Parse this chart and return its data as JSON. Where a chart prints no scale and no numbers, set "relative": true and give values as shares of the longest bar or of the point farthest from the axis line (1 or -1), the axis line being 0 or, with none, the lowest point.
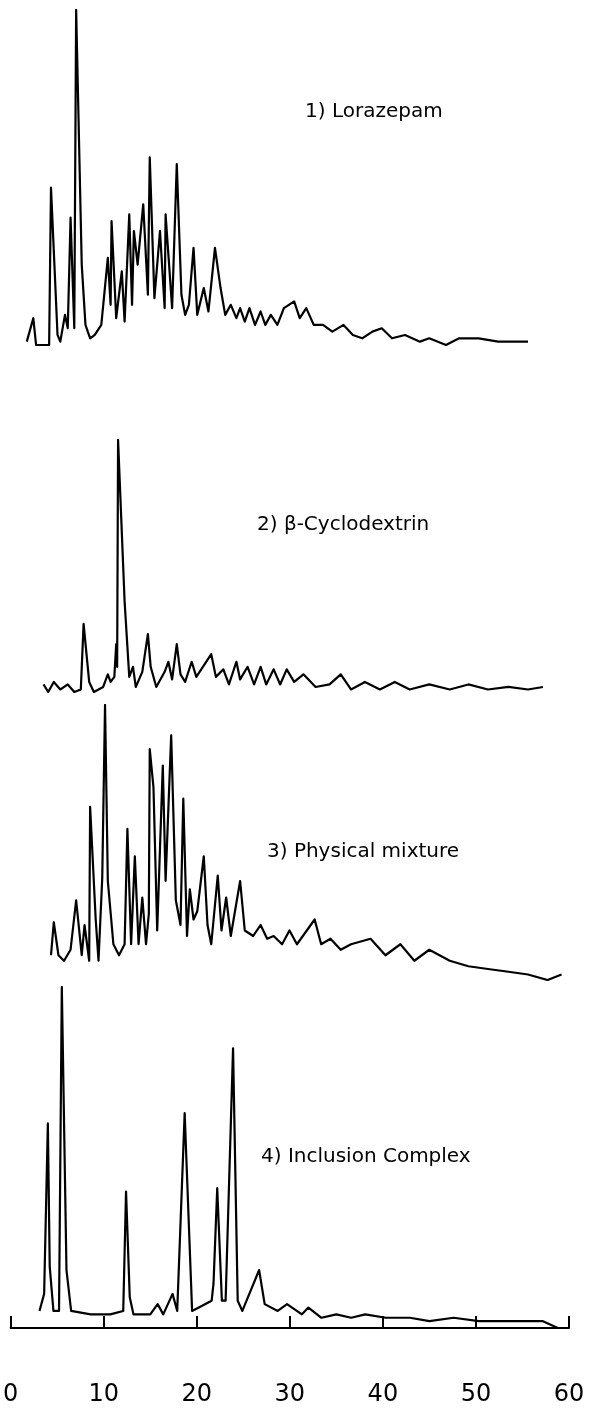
{
  "chart_data": [
    {
      "type": "line",
      "title": "1) Lorazepam",
      "relative": true,
      "xlim": [
        0,
        60
      ],
      "tick_labels": false,
      "marker": "none",
      "series": [
        {
          "color": "#000000",
          "x": [
            1.8,
            2.5,
            2.8,
            4.2,
            4.4,
            5.1,
            5.4,
            5.9,
            6.2,
            6.5,
            6.9,
            7.1,
            7.7,
            8.1,
            8.6,
            9.1,
            9.8,
            10.5,
            10.8,
            10.9,
            11.4,
            12.0,
            12.3,
            12.8,
            13.1,
            13.3,
            13.7,
            14.3,
            14.8,
            15.0,
            15.5,
            16.1,
            16.6,
            16.7,
            17.4,
            17.9,
            18.4,
            18.8,
            19.2,
            19.7,
            20.1,
            20.8,
            21.3,
            22.0,
            22.6,
            23.1,
            23.7,
            24.3,
            24.7,
            25.2,
            25.7,
            26.3,
            26.9,
            27.4,
            28.0,
            28.7,
            29.4,
            30.5,
            31.1,
            31.8,
            32.6,
            33.6,
            34.6,
            35.8,
            36.8,
            37.8,
            38.9,
            39.9,
            41.0,
            42.4,
            44.0,
            45.0,
            46.8,
            48.2,
            50.3,
            52.4,
            54.0,
            55.6
          ],
          "values": [
            0.01,
            0.08,
            0.0,
            0.0,
            0.47,
            0.03,
            0.01,
            0.09,
            0.05,
            0.38,
            0.05,
            1.0,
            0.24,
            0.06,
            0.02,
            0.03,
            0.06,
            0.26,
            0.12,
            0.37,
            0.08,
            0.22,
            0.07,
            0.39,
            0.12,
            0.34,
            0.24,
            0.42,
            0.15,
            0.56,
            0.14,
            0.34,
            0.11,
            0.39,
            0.11,
            0.54,
            0.15,
            0.09,
            0.12,
            0.29,
            0.09,
            0.17,
            0.1,
            0.29,
            0.17,
            0.09,
            0.12,
            0.08,
            0.11,
            0.07,
            0.11,
            0.06,
            0.1,
            0.06,
            0.09,
            0.06,
            0.11,
            0.13,
            0.08,
            0.11,
            0.06,
            0.06,
            0.04,
            0.06,
            0.03,
            0.02,
            0.04,
            0.05,
            0.02,
            0.03,
            0.01,
            0.02,
            0.0,
            0.02,
            0.02,
            0.01,
            0.01,
            0.01
          ]
        }
      ]
    },
    {
      "type": "line",
      "title": "2) β-Cyclodextrin",
      "relative": true,
      "xlim": [
        0,
        60
      ],
      "tick_labels": false,
      "marker": "none",
      "series": [
        {
          "color": "#000000",
          "x": [
            3.6,
            4.1,
            4.7,
            5.4,
            6.2,
            6.9,
            7.6,
            7.9,
            8.5,
            9.0,
            10.0,
            10.5,
            10.8,
            11.2,
            11.4,
            11.5,
            11.6,
            12.3,
            12.8,
            13.2,
            13.5,
            14.2,
            14.8,
            15.1,
            15.7,
            16.6,
            17.0,
            17.4,
            17.9,
            18.3,
            18.8,
            19.5,
            20.0,
            21.6,
            22.1,
            22.9,
            23.5,
            24.3,
            24.7,
            25.5,
            26.2,
            26.9,
            27.5,
            28.3,
            29.0,
            29.7,
            30.5,
            31.5,
            32.8,
            34.3,
            35.5,
            36.6,
            38.1,
            39.7,
            41.3,
            42.9,
            45.0,
            47.2,
            49.2,
            51.3,
            53.5,
            55.6,
            57.2
          ],
          "values": [
            0.03,
            0.0,
            0.04,
            0.01,
            0.03,
            0.0,
            0.01,
            0.27,
            0.04,
            0.0,
            0.02,
            0.07,
            0.04,
            0.06,
            0.19,
            0.1,
            1.0,
            0.36,
            0.06,
            0.1,
            0.02,
            0.08,
            0.23,
            0.1,
            0.02,
            0.08,
            0.12,
            0.05,
            0.19,
            0.07,
            0.04,
            0.12,
            0.06,
            0.15,
            0.06,
            0.09,
            0.03,
            0.12,
            0.05,
            0.1,
            0.03,
            0.1,
            0.03,
            0.09,
            0.03,
            0.09,
            0.04,
            0.07,
            0.02,
            0.03,
            0.07,
            0.01,
            0.04,
            0.01,
            0.04,
            0.01,
            0.03,
            0.01,
            0.03,
            0.01,
            0.02,
            0.01,
            0.02
          ]
        }
      ]
    },
    {
      "type": "line",
      "title": "3) Physical mixture",
      "relative": true,
      "xlim": [
        0,
        60
      ],
      "tick_labels": false,
      "marker": "none",
      "series": [
        {
          "color": "#000000",
          "x": [
            4.4,
            4.7,
            5.2,
            5.8,
            6.5,
            7.1,
            7.7,
            8.0,
            8.5,
            8.6,
            9.2,
            9.5,
            9.9,
            10.2,
            10.5,
            11.1,
            11.7,
            12.3,
            12.6,
            13.0,
            13.4,
            13.8,
            14.2,
            14.6,
            14.9,
            15.0,
            15.4,
            15.8,
            16.4,
            16.7,
            17.3,
            17.8,
            18.3,
            18.6,
            19.0,
            19.3,
            19.7,
            20.1,
            20.8,
            21.2,
            21.6,
            22.3,
            22.7,
            23.2,
            23.7,
            24.7,
            25.2,
            26.1,
            26.9,
            27.6,
            28.3,
            29.2,
            30.0,
            30.8,
            32.7,
            33.4,
            34.4,
            35.5,
            36.6,
            38.7,
            40.3,
            41.9,
            43.4,
            45.0,
            47.2,
            49.2,
            51.3,
            53.5,
            55.6,
            57.7,
            59.2
          ],
          "values": [
            0.09,
            0.21,
            0.09,
            0.07,
            0.11,
            0.29,
            0.09,
            0.2,
            0.07,
            0.63,
            0.22,
            0.07,
            0.37,
            1.0,
            0.36,
            0.13,
            0.09,
            0.13,
            0.55,
            0.13,
            0.45,
            0.13,
            0.3,
            0.13,
            0.24,
            0.84,
            0.7,
            0.18,
            0.78,
            0.36,
            0.89,
            0.29,
            0.2,
            0.66,
            0.16,
            0.33,
            0.22,
            0.25,
            0.45,
            0.2,
            0.13,
            0.38,
            0.18,
            0.3,
            0.16,
            0.36,
            0.18,
            0.16,
            0.2,
            0.15,
            0.16,
            0.13,
            0.18,
            0.13,
            0.22,
            0.13,
            0.15,
            0.11,
            0.13,
            0.15,
            0.09,
            0.13,
            0.07,
            0.11,
            0.07,
            0.05,
            0.04,
            0.03,
            0.02,
            0.0,
            0.02
          ]
        }
      ]
    },
    {
      "type": "line",
      "title": "4) Inclusion Complex",
      "relative": true,
      "xlim": [
        0,
        60
      ],
      "xticks": [
        0,
        10,
        20,
        30,
        40,
        50,
        60
      ],
      "tick_labels": "x",
      "marker": "none",
      "series": [
        {
          "color": "#000000",
          "x": [
            3.1,
            3.6,
            4.0,
            4.2,
            4.6,
            5.2,
            5.5,
            6.0,
            6.5,
            8.6,
            10.7,
            12.1,
            12.4,
            12.8,
            13.2,
            15.0,
            15.8,
            16.4,
            17.4,
            17.9,
            18.7,
            19.5,
            21.6,
            21.8,
            22.2,
            22.7,
            23.1,
            23.9,
            24.4,
            24.9,
            26.7,
            27.3,
            28.7,
            29.7,
            31.3,
            32.0,
            33.4,
            35.0,
            36.6,
            38.1,
            40.3,
            42.9,
            45.0,
            47.6,
            50.3,
            52.9,
            55.6,
            57.2,
            58.8
          ],
          "values": [
            0.05,
            0.1,
            0.6,
            0.18,
            0.05,
            0.05,
            1.0,
            0.17,
            0.05,
            0.04,
            0.04,
            0.05,
            0.4,
            0.09,
            0.04,
            0.04,
            0.07,
            0.04,
            0.1,
            0.05,
            0.63,
            0.05,
            0.08,
            0.13,
            0.41,
            0.08,
            0.08,
            0.82,
            0.08,
            0.05,
            0.17,
            0.07,
            0.05,
            0.07,
            0.04,
            0.06,
            0.03,
            0.04,
            0.03,
            0.04,
            0.03,
            0.03,
            0.02,
            0.03,
            0.02,
            0.02,
            0.02,
            0.02,
            0.0
          ]
        }
      ]
    }
  ]
}
